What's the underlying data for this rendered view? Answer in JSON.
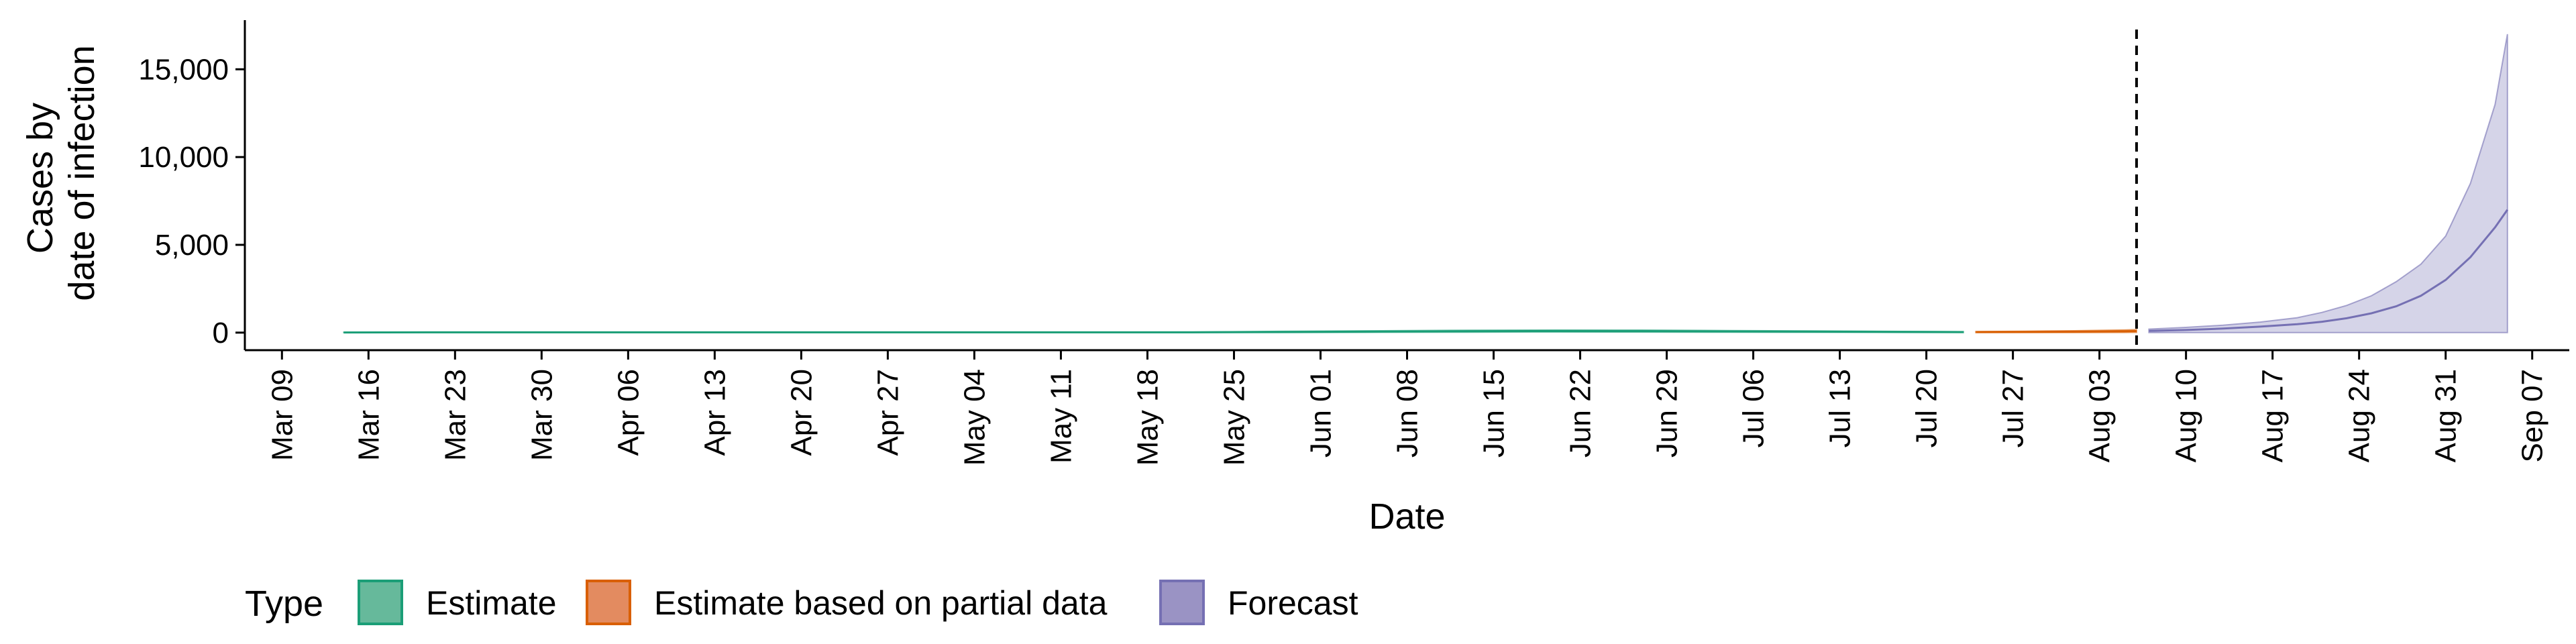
{
  "chart_data": {
    "type": "area",
    "xlabel": "Date",
    "ylabel_lines": [
      "Cases by",
      "date of infection"
    ],
    "x_range": [
      "2020-03-06",
      "2020-09-10"
    ],
    "ylim": [
      -1000,
      17800
    ],
    "y_ticks": [
      0,
      5000,
      10000,
      15000
    ],
    "y_tick_labels": [
      "0",
      "5,000",
      "10,000",
      "15,000"
    ],
    "x_ticks": [
      "2020-03-09",
      "2020-03-16",
      "2020-03-23",
      "2020-03-30",
      "2020-04-06",
      "2020-04-13",
      "2020-04-20",
      "2020-04-27",
      "2020-05-04",
      "2020-05-11",
      "2020-05-18",
      "2020-05-25",
      "2020-06-01",
      "2020-06-08",
      "2020-06-15",
      "2020-06-22",
      "2020-06-29",
      "2020-07-06",
      "2020-07-13",
      "2020-07-20",
      "2020-07-27",
      "2020-08-03",
      "2020-08-10",
      "2020-08-17",
      "2020-08-24",
      "2020-08-31",
      "2020-09-07"
    ],
    "x_tick_labels": [
      "Mar 09",
      "Mar 16",
      "Mar 23",
      "Mar 30",
      "Apr 06",
      "Apr 13",
      "Apr 20",
      "Apr 27",
      "May 04",
      "May 11",
      "May 18",
      "May 25",
      "Jun 01",
      "Jun 08",
      "Jun 15",
      "Jun 22",
      "Jun 29",
      "Jul 06",
      "Jul 13",
      "Jul 20",
      "Jul 27",
      "Aug 03",
      "Aug 10",
      "Aug 17",
      "Aug 24",
      "Aug 31",
      "Sep 07"
    ],
    "vline_date": "2020-08-06",
    "grid": false,
    "legend": {
      "title": "Type",
      "position": "bottom",
      "entries": [
        {
          "label": "Estimate",
          "fill": "#66b99b",
          "stroke": "#1b9e77"
        },
        {
          "label": "Estimate based on partial data",
          "fill": "#e38b60",
          "stroke": "#d95f02"
        },
        {
          "label": "Forecast",
          "fill": "#9a93c4",
          "stroke": "#7570b3"
        }
      ]
    },
    "series": [
      {
        "name": "Estimate",
        "color": "#1b9e77",
        "x": [
          "2020-03-14",
          "2020-03-21",
          "2020-03-28",
          "2020-04-04",
          "2020-04-11",
          "2020-04-18",
          "2020-04-25",
          "2020-05-02",
          "2020-05-09",
          "2020-05-16",
          "2020-05-23",
          "2020-05-30",
          "2020-06-06",
          "2020-06-13",
          "2020-06-20",
          "2020-06-27",
          "2020-07-04",
          "2020-07-11",
          "2020-07-18",
          "2020-07-23"
        ],
        "y": [
          10,
          15,
          15,
          15,
          15,
          15,
          15,
          15,
          15,
          15,
          20,
          40,
          60,
          80,
          90,
          85,
          70,
          55,
          40,
          30
        ],
        "lower": [
          0,
          0,
          0,
          0,
          0,
          0,
          0,
          0,
          0,
          0,
          0,
          5,
          15,
          25,
          30,
          28,
          22,
          15,
          10,
          5
        ],
        "upper": [
          20,
          30,
          30,
          30,
          30,
          30,
          30,
          30,
          30,
          30,
          40,
          80,
          110,
          140,
          150,
          145,
          120,
          95,
          70,
          55
        ]
      },
      {
        "name": "Estimate based on partial data",
        "color": "#d95f02",
        "x": [
          "2020-07-24",
          "2020-07-28",
          "2020-08-01",
          "2020-08-05",
          "2020-08-06"
        ],
        "y": [
          30,
          40,
          55,
          75,
          85
        ],
        "lower": [
          0,
          0,
          5,
          10,
          12
        ],
        "upper": [
          60,
          80,
          110,
          150,
          170
        ]
      },
      {
        "name": "Forecast",
        "color": "#7570b3",
        "x": [
          "2020-08-07",
          "2020-08-10",
          "2020-08-13",
          "2020-08-16",
          "2020-08-19",
          "2020-08-21",
          "2020-08-23",
          "2020-08-25",
          "2020-08-27",
          "2020-08-29",
          "2020-08-31",
          "2020-09-02",
          "2020-09-04",
          "2020-09-05"
        ],
        "y": [
          100,
          150,
          230,
          340,
          480,
          620,
          820,
          1100,
          1500,
          2100,
          3000,
          4300,
          6000,
          7000
        ],
        "lower": [
          0,
          0,
          0,
          0,
          0,
          0,
          0,
          0,
          0,
          0,
          0,
          0,
          0,
          0
        ],
        "upper": [
          200,
          300,
          420,
          600,
          850,
          1150,
          1550,
          2100,
          2900,
          3900,
          5500,
          8500,
          13000,
          17000
        ]
      }
    ]
  }
}
